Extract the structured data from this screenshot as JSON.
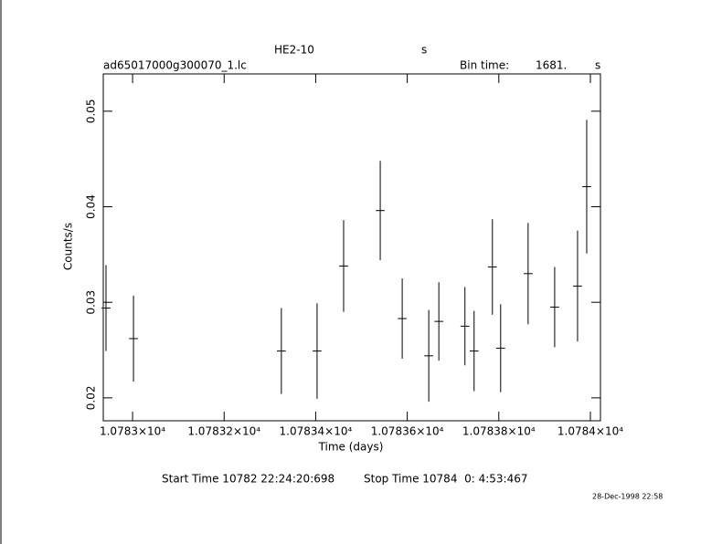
{
  "chart_data": {
    "type": "errorbar",
    "title": "HE2-10",
    "title_unit": "s",
    "file": "ad65017000g300070_1.lc",
    "bin_time_label": "Bin time:",
    "bin_time": "1681.",
    "bin_time_unit": "s",
    "xlabel": "Time (days)",
    "ylabel": "Counts/s",
    "start_time": "Start Time 10782 22:24:20:698",
    "stop_time": "Stop Time 10784  0: 4:53:467",
    "timestamp": "28-Dec-1998 22:58",
    "color": "#000000",
    "xlim": [
      10782.936,
      10784.022
    ],
    "ylim": [
      0.0176,
      0.0539
    ],
    "xticks": [
      {
        "value": 10783,
        "label": "1.0783×10⁴"
      },
      {
        "value": 10783.2,
        "label": "1.07832×10⁴"
      },
      {
        "value": 10783.4,
        "label": "1.07834×10⁴"
      },
      {
        "value": 10783.6,
        "label": "1.07836×10⁴"
      },
      {
        "value": 10783.8,
        "label": "1.07838×10⁴"
      },
      {
        "value": 10784,
        "label": "1.0784×10⁴"
      }
    ],
    "yticks": [
      0.02,
      0.03,
      0.04,
      0.05
    ],
    "xerr": 0.0097,
    "series": [
      {
        "x": [
          10782.942,
          10783.002,
          10783.325,
          10783.403,
          10783.461,
          10783.541,
          10783.589,
          10783.647,
          10783.669,
          10783.726,
          10783.746,
          10783.786,
          10783.804,
          10783.864,
          10783.922,
          10783.972,
          10783.992
        ],
        "values": [
          0.0294,
          0.0262,
          0.0249,
          0.0249,
          0.0338,
          0.0396,
          0.0283,
          0.0244,
          0.028,
          0.0275,
          0.0249,
          0.0337,
          0.0252,
          0.033,
          0.0295,
          0.0317,
          0.0421
        ],
        "errors": [
          0.0045,
          0.0045,
          0.0045,
          0.005,
          0.0048,
          0.0052,
          0.0042,
          0.0048,
          0.0041,
          0.0041,
          0.0042,
          0.005,
          0.0046,
          0.0053,
          0.0042,
          0.0058,
          0.007
        ]
      }
    ]
  }
}
